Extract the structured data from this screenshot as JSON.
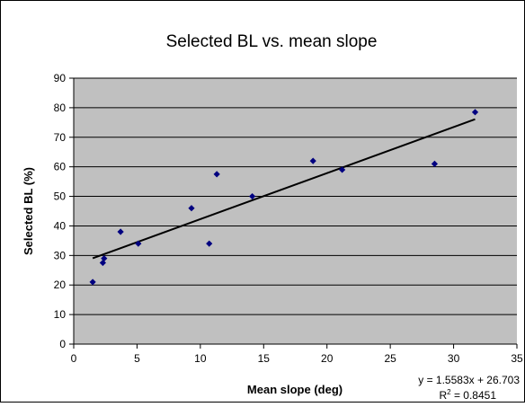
{
  "chart_data": {
    "type": "scatter",
    "title": "Selected BL vs. mean slope",
    "xlabel": "Mean slope (deg)",
    "ylabel": "Selected BL (%)",
    "xlim": [
      0,
      35
    ],
    "ylim": [
      0,
      90
    ],
    "x_ticks": [
      0,
      5,
      10,
      15,
      20,
      25,
      30,
      35
    ],
    "y_ticks": [
      0,
      10,
      20,
      30,
      40,
      50,
      60,
      70,
      80,
      90
    ],
    "grid": "horizontal",
    "legend": "none",
    "series": [
      {
        "points": [
          {
            "x": 1.5,
            "y": 21
          },
          {
            "x": 2.3,
            "y": 27.5
          },
          {
            "x": 2.4,
            "y": 29
          },
          {
            "x": 3.7,
            "y": 38
          },
          {
            "x": 5.1,
            "y": 34
          },
          {
            "x": 9.3,
            "y": 46
          },
          {
            "x": 10.7,
            "y": 34
          },
          {
            "x": 11.3,
            "y": 57.5
          },
          {
            "x": 14.1,
            "y": 50
          },
          {
            "x": 18.9,
            "y": 62
          },
          {
            "x": 21.2,
            "y": 59
          },
          {
            "x": 28.5,
            "y": 61
          },
          {
            "x": 31.7,
            "y": 78.5
          }
        ]
      }
    ],
    "trendline": {
      "type": "linear",
      "slope": 1.5583,
      "intercept": 26.703,
      "x_range": [
        1.5,
        31.7
      ],
      "equation_label": "y = 1.5583x + 26.703",
      "r2_prefix": "R",
      "r2_superscript": "2",
      "r2_value_text": " = 0.8451"
    }
  },
  "colors": {
    "plot_background": "#c0c0c0",
    "marker": "#000080",
    "trendline": "#000000",
    "gridline": "#000000",
    "frame": "#000000"
  }
}
